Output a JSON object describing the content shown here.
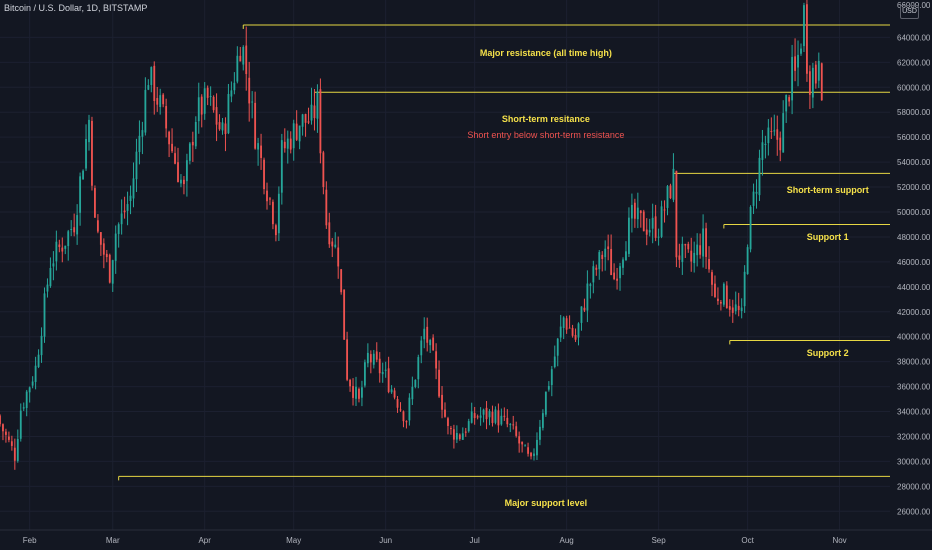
{
  "header": {
    "symbol_title": "Bitcoin / U.S. Dollar, 1D, BITSTAMP",
    "currency_badge": "USD",
    "top_partial_price": "66000.00"
  },
  "colors": {
    "background": "#131722",
    "up": "#26a69a",
    "down": "#ef5350",
    "level_line": "#e6d743",
    "label_yellow": "#f5e14a",
    "label_red": "#ef5350",
    "axis_text": "#b2b5be"
  },
  "chart_data": {
    "type": "candlestick",
    "title": "Bitcoin / U.S. Dollar, 1D, BITSTAMP",
    "ylim": [
      24500,
      67000
    ],
    "x_range": [
      "2021-01-22",
      "2021-11-18"
    ],
    "y_ticks": [
      26000,
      28000,
      30000,
      32000,
      34000,
      36000,
      38000,
      40000,
      42000,
      44000,
      46000,
      48000,
      50000,
      52000,
      54000,
      56000,
      58000,
      60000,
      62000,
      64000
    ],
    "y_tick_labels": [
      "26000.00",
      "28000.00",
      "30000.00",
      "32000.00",
      "34000.00",
      "36000.00",
      "38000.00",
      "40000.00",
      "42000.00",
      "44000.00",
      "46000.00",
      "48000.00",
      "50000.00",
      "52000.00",
      "54000.00",
      "56000.00",
      "58000.00",
      "60000.00",
      "62000.00",
      "64000.00"
    ],
    "x_ticks": [
      {
        "label": "Feb",
        "date": "2021-02-01"
      },
      {
        "label": "Mar",
        "date": "2021-03-01"
      },
      {
        "label": "Apr",
        "date": "2021-04-01"
      },
      {
        "label": "May",
        "date": "2021-05-01"
      },
      {
        "label": "Jun",
        "date": "2021-06-01"
      },
      {
        "label": "Jul",
        "date": "2021-07-01"
      },
      {
        "label": "Aug",
        "date": "2021-08-01"
      },
      {
        "label": "Sep",
        "date": "2021-09-01"
      },
      {
        "label": "Oct",
        "date": "2021-10-01"
      },
      {
        "label": "Nov",
        "date": "2021-11-01"
      }
    ],
    "close_anchors": [
      [
        "2021-01-22",
        33000
      ],
      [
        "2021-01-27",
        30500
      ],
      [
        "2021-01-29",
        34200
      ],
      [
        "2021-02-03",
        37500
      ],
      [
        "2021-02-08",
        46000
      ],
      [
        "2021-02-13",
        47800
      ],
      [
        "2021-02-16",
        49200
      ],
      [
        "2021-02-21",
        57400
      ],
      [
        "2021-02-23",
        48900
      ],
      [
        "2021-02-28",
        45200
      ],
      [
        "2021-03-02",
        48400
      ],
      [
        "2021-03-07",
        51200
      ],
      [
        "2021-03-13",
        61000
      ],
      [
        "2021-03-17",
        58500
      ],
      [
        "2021-03-22",
        54100
      ],
      [
        "2021-03-25",
        51700
      ],
      [
        "2021-03-29",
        57800
      ],
      [
        "2021-04-02",
        59000
      ],
      [
        "2021-04-07",
        56200
      ],
      [
        "2021-04-13",
        63500
      ],
      [
        "2021-04-14",
        62900
      ],
      [
        "2021-04-18",
        56300
      ],
      [
        "2021-04-22",
        51900
      ],
      [
        "2021-04-25",
        49000
      ],
      [
        "2021-04-27",
        54800
      ],
      [
        "2021-05-03",
        57200
      ],
      [
        "2021-05-07",
        57400
      ],
      [
        "2021-05-09",
        58700
      ],
      [
        "2021-05-12",
        49200
      ],
      [
        "2021-05-16",
        46400
      ],
      [
        "2021-05-19",
        37000
      ],
      [
        "2021-05-23",
        34700
      ],
      [
        "2021-05-26",
        38400
      ],
      [
        "2021-06-01",
        36800
      ],
      [
        "2021-06-08",
        33400
      ],
      [
        "2021-06-14",
        40500
      ],
      [
        "2021-06-17",
        38100
      ],
      [
        "2021-06-22",
        32500
      ],
      [
        "2021-06-26",
        32100
      ],
      [
        "2021-07-01",
        33600
      ],
      [
        "2021-07-07",
        33800
      ],
      [
        "2021-07-13",
        32700
      ],
      [
        "2021-07-20",
        29800
      ],
      [
        "2021-07-25",
        35400
      ],
      [
        "2021-07-31",
        41500
      ],
      [
        "2021-08-04",
        39800
      ],
      [
        "2021-08-08",
        43800
      ],
      [
        "2021-08-14",
        47100
      ],
      [
        "2021-08-17",
        44700
      ],
      [
        "2021-08-23",
        49500
      ],
      [
        "2021-08-28",
        48900
      ],
      [
        "2021-09-01",
        48800
      ],
      [
        "2021-09-06",
        52700
      ],
      [
        "2021-09-07",
        46800
      ],
      [
        "2021-09-12",
        46000
      ],
      [
        "2021-09-16",
        47800
      ],
      [
        "2021-09-20",
        43000
      ],
      [
        "2021-09-22",
        43600
      ],
      [
        "2021-09-27",
        42200
      ],
      [
        "2021-09-29",
        41500
      ],
      [
        "2021-10-01",
        48100
      ],
      [
        "2021-10-06",
        55400
      ],
      [
        "2021-10-12",
        56000
      ],
      [
        "2021-10-15",
        59900
      ],
      [
        "2021-10-16",
        61100
      ],
      [
        "2021-10-17",
        60900
      ],
      [
        "2021-10-19",
        64000
      ],
      [
        "2021-10-20",
        66000
      ],
      [
        "2021-10-21",
        62300
      ],
      [
        "2021-10-22",
        60700
      ],
      [
        "2021-10-23",
        61300
      ],
      [
        "2021-10-24",
        60800
      ],
      [
        "2021-10-25",
        63100
      ],
      [
        "2021-10-26",
        60300
      ]
    ],
    "levels": [
      {
        "price": 65000,
        "start": "2021-04-14",
        "label": "Major resistance (all time high)",
        "label_date": "2021-07-25",
        "label_price": 62700
      },
      {
        "price": 59600,
        "start": "2021-05-08",
        "label": "Short-term resitance",
        "label_date": "2021-07-25",
        "label_price": 57400
      },
      {
        "price": 53100,
        "start": "2021-09-06",
        "label": "Short-term support",
        "label_date": "2021-10-28",
        "label_price": 51700
      },
      {
        "price": 49000,
        "start": "2021-09-23",
        "label": "Support 1",
        "label_date": "2021-10-28",
        "label_price": 47900
      },
      {
        "price": 39700,
        "start": "2021-09-25",
        "label": "Support 2",
        "label_date": "2021-10-28",
        "label_price": 38600
      },
      {
        "price": 28800,
        "start": "2021-03-03",
        "label": "Major support level",
        "label_date": "2021-07-25",
        "label_price": 26600
      }
    ],
    "annotations": [
      {
        "text": "Short entry below short-term resistance",
        "date": "2021-07-25",
        "price": 56100,
        "color": "#ef5350"
      }
    ]
  }
}
